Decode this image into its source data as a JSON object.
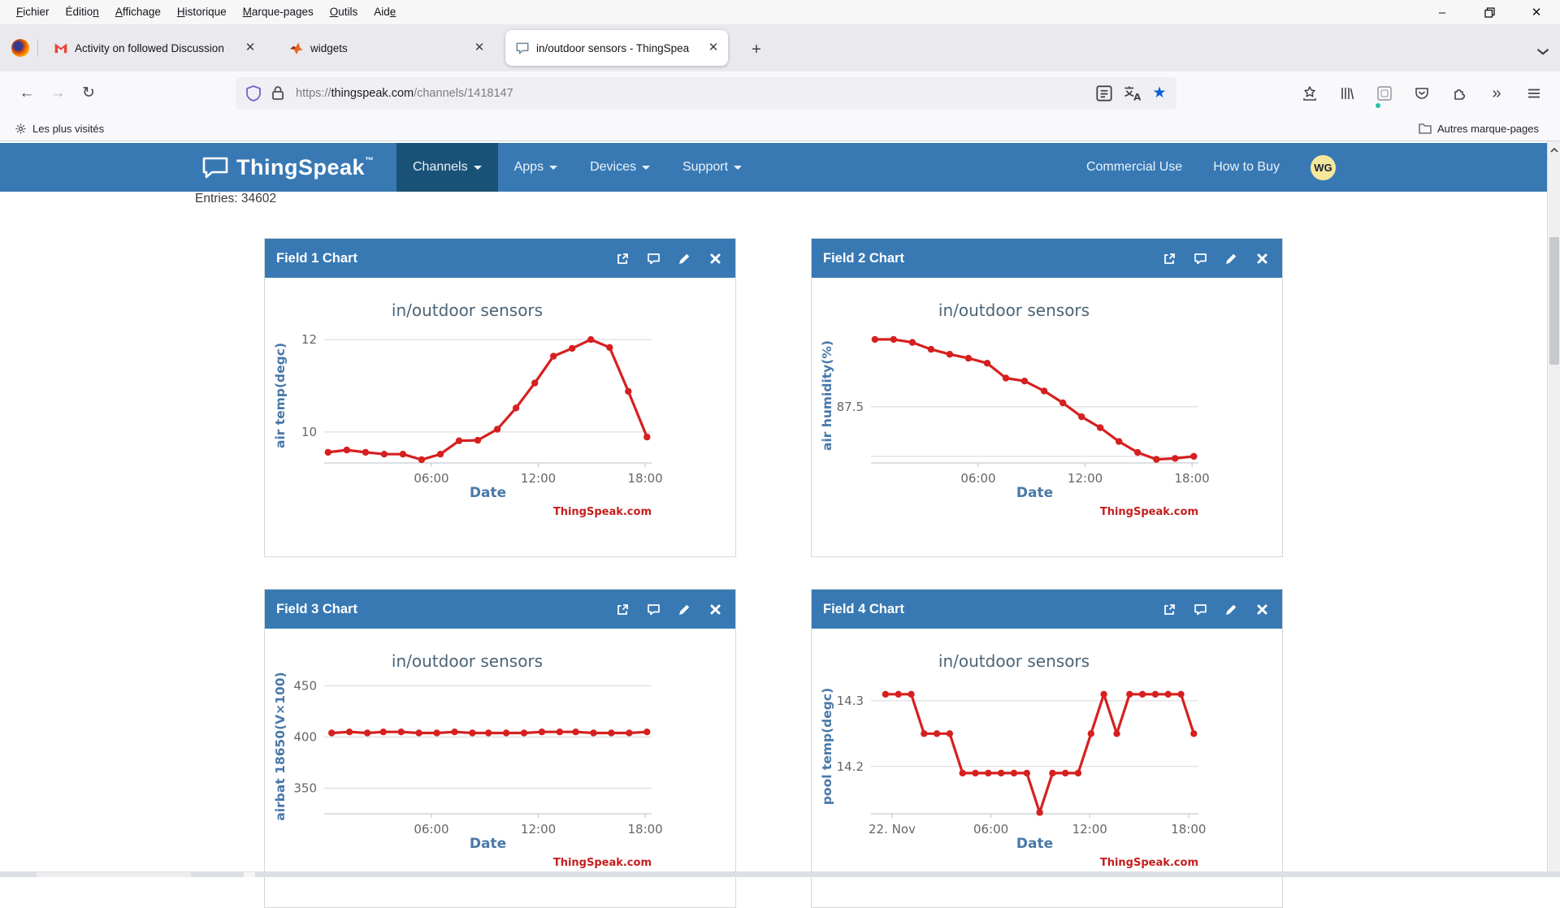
{
  "browser": {
    "menubar": [
      {
        "label": "Fichier",
        "key": 0
      },
      {
        "label": "Édition",
        "key": 6
      },
      {
        "label": "Affichage",
        "key": 0
      },
      {
        "label": "Historique",
        "key": 0
      },
      {
        "label": "Marque-pages",
        "key": 0
      },
      {
        "label": "Outils",
        "key": 0
      },
      {
        "label": "Aide",
        "key": 3
      }
    ],
    "tabs": [
      {
        "title": "Activity on followed Discussion",
        "icon": "gmail-icon"
      },
      {
        "title": "widgets",
        "icon": "matlab-icon"
      },
      {
        "title": "in/outdoor sensors - ThingSpea",
        "icon": "thingspeak-icon",
        "active": true
      }
    ],
    "url": {
      "scheme": "https://",
      "host": "thingspeak.com",
      "path": "/channels/1418147"
    },
    "bookmarks_left": "Les plus visités",
    "bookmarks_right": "Autres marque-pages",
    "icons": {
      "back": "←",
      "forward": "→",
      "reload": "↻",
      "new_tab": "+",
      "close_tab": "×",
      "more_tools": "»",
      "bookmark_star_color": "#0b61d8"
    }
  },
  "site": {
    "brand": "ThingSpeak",
    "brand_tm": "™",
    "nav": [
      {
        "label": "Channels",
        "active": true
      },
      {
        "label": "Apps",
        "active": false
      },
      {
        "label": "Devices",
        "active": false
      },
      {
        "label": "Support",
        "active": false
      }
    ],
    "nav_right": [
      "Commercial Use",
      "How to Buy"
    ],
    "avatar": "WG",
    "entries": "Entries: 34602",
    "fields": [
      "Field 1 Chart",
      "Field 2 Chart",
      "Field 3 Chart",
      "Field 4 Chart"
    ],
    "colors": {
      "navbar": "#3879b4",
      "navbar_active": "#1a5176",
      "panel_header": "#3879b4",
      "chart_red": "#d62020"
    }
  },
  "chart_data": [
    {
      "type": "line",
      "title": "in/outdoor sensors",
      "xlabel": "Date",
      "ylabel": "air temp(degc)",
      "attribution": "ThingSpeak.com",
      "line_color": "#d62020",
      "x": [
        0.2,
        1.25,
        2.3,
        3.35,
        4.4,
        5.45,
        6.5,
        7.55,
        8.6,
        9.7,
        10.75,
        11.8,
        12.85,
        13.9,
        14.95,
        16.0,
        17.05,
        18.1
      ],
      "values": [
        9.56,
        9.61,
        9.56,
        9.52,
        9.52,
        9.4,
        9.52,
        9.81,
        9.82,
        10.06,
        10.52,
        11.06,
        11.64,
        11.81,
        12.0,
        11.83,
        10.88,
        9.89
      ],
      "xlim": [
        -0.02,
        18.36
      ],
      "ylim": [
        9.33,
        12.23
      ],
      "xticks": [
        {
          "v": 6,
          "label": "06:00"
        },
        {
          "v": 12,
          "label": "12:00"
        },
        {
          "v": 18,
          "label": "18:00"
        }
      ],
      "yticks": [
        {
          "v": 10,
          "label": "10"
        },
        {
          "v": 12,
          "label": "12"
        }
      ],
      "grid": true,
      "legend": false
    },
    {
      "type": "line",
      "title": "in/outdoor sensors",
      "xlabel": "Date",
      "ylabel": "air humidity(%)",
      "attribution": "ThingSpeak.com",
      "line_color": "#d62020",
      "x": [
        0.2,
        1.25,
        2.3,
        3.35,
        4.4,
        5.45,
        6.5,
        7.55,
        8.6,
        9.7,
        10.75,
        11.8,
        12.85,
        13.9,
        14.95,
        16.0,
        17.05,
        18.1
      ],
      "values": [
        90.9,
        90.9,
        90.75,
        90.4,
        90.15,
        89.95,
        89.7,
        88.95,
        88.8,
        88.3,
        87.7,
        87.0,
        86.45,
        85.75,
        85.2,
        84.85,
        84.9,
        85.0
      ],
      "xlim": [
        -0.02,
        18.36
      ],
      "ylim": [
        84.67,
        91.43
      ],
      "xticks": [
        {
          "v": 6,
          "label": "06:00"
        },
        {
          "v": 12,
          "label": "12:00"
        },
        {
          "v": 18,
          "label": "18:00"
        }
      ],
      "yticks": [
        {
          "v": 85,
          "label": ""
        },
        {
          "v": 87.5,
          "label": "87.5"
        }
      ],
      "grid": true,
      "legend": false
    },
    {
      "type": "line",
      "title": "in/outdoor sensors",
      "xlabel": "Date",
      "ylabel": "airbat 18650(V×100)",
      "attribution": "ThingSpeak.com",
      "line_color": "#d62020",
      "x": [
        0.4,
        1.4,
        2.4,
        3.3,
        4.3,
        5.3,
        6.3,
        7.3,
        8.3,
        9.2,
        10.2,
        11.2,
        12.2,
        13.2,
        14.1,
        15.1,
        16.1,
        17.1,
        18.1
      ],
      "values": [
        404,
        405,
        404,
        405,
        405,
        404,
        404,
        405,
        404,
        404,
        404,
        404,
        405,
        405,
        405,
        404,
        404,
        404,
        405
      ],
      "xlim": [
        -0.02,
        18.36
      ],
      "ylim": [
        325,
        456
      ],
      "xticks": [
        {
          "v": 6,
          "label": "06:00"
        },
        {
          "v": 12,
          "label": "12:00"
        },
        {
          "v": 18,
          "label": "18:00"
        }
      ],
      "yticks": [
        {
          "v": 350,
          "label": "350"
        },
        {
          "v": 400,
          "label": "400"
        },
        {
          "v": 450,
          "label": "450"
        }
      ],
      "grid": true,
      "legend": false
    },
    {
      "type": "line",
      "title": "in/outdoor sensors",
      "xlabel": "Date",
      "ylabel": "pool temp(degc)",
      "attribution": "ThingSpeak.com",
      "line_color": "#d62020",
      "x": [
        -0.4,
        0.38,
        1.16,
        1.94,
        2.72,
        3.5,
        4.28,
        5.06,
        5.84,
        6.62,
        7.4,
        8.18,
        8.96,
        9.74,
        10.52,
        11.3,
        12.08,
        12.86,
        13.64,
        14.42,
        15.2,
        15.98,
        16.76,
        17.54,
        18.32
      ],
      "values": [
        14.31,
        14.31,
        14.31,
        14.25,
        14.25,
        14.25,
        14.19,
        14.19,
        14.19,
        14.19,
        14.19,
        14.19,
        14.13,
        14.19,
        14.19,
        14.19,
        14.25,
        14.31,
        14.25,
        14.31,
        14.31,
        14.31,
        14.31,
        14.31,
        14.25
      ],
      "xlim": [
        -1.28,
        18.6
      ],
      "ylim": [
        14.128,
        14.332
      ],
      "xticks": [
        {
          "v": 0,
          "label": "22. Nov"
        },
        {
          "v": 6,
          "label": "06:00"
        },
        {
          "v": 12,
          "label": "12:00"
        },
        {
          "v": 18,
          "label": "18:00"
        }
      ],
      "yticks": [
        {
          "v": 14.2,
          "label": "14.2"
        },
        {
          "v": 14.3,
          "label": "14.3"
        }
      ],
      "grid": true,
      "legend": false
    }
  ]
}
